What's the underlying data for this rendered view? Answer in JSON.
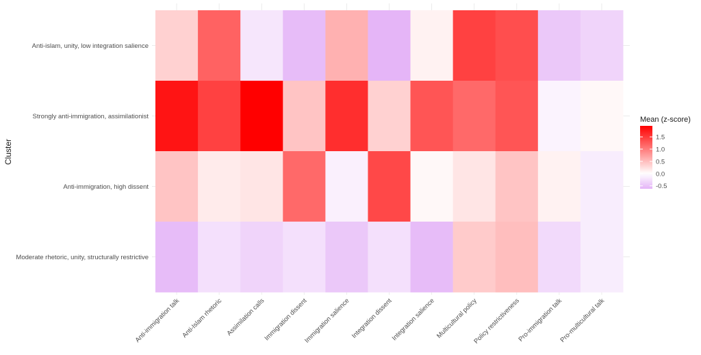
{
  "chart_data": {
    "type": "heatmap",
    "ylabel": "Cluster",
    "xlabel": "",
    "x_categories": [
      "Anti-immigration talk",
      "Anti-Islam rhetoric",
      "Assimilation calls",
      "Immigration dissent",
      "Immigration salience",
      "Integration dissent",
      "Integration salience",
      "Multicultural policy",
      "Policy restrictiveness",
      "Pro-immigration talk",
      "Pro-multicultural talk"
    ],
    "y_categories": [
      "Anti-islam, unity, low integration salience",
      "Strongly anti-immigration, assimilationist",
      "Anti-immigration, high dissent",
      "Moderate rhetoric, unity, structurally restrictive"
    ],
    "values": [
      [
        0.35,
        1.2,
        -0.2,
        -0.55,
        0.6,
        -0.6,
        0.1,
        1.45,
        1.35,
        -0.45,
        -0.35
      ],
      [
        1.8,
        1.45,
        1.95,
        0.45,
        1.6,
        0.35,
        1.3,
        1.15,
        1.3,
        -0.1,
        0.05
      ],
      [
        0.45,
        0.15,
        0.2,
        1.15,
        -0.12,
        1.4,
        0.05,
        0.2,
        0.45,
        0.1,
        -0.15
      ],
      [
        -0.55,
        -0.25,
        -0.35,
        -0.25,
        -0.45,
        -0.25,
        -0.55,
        0.4,
        0.5,
        -0.3,
        -0.15
      ]
    ],
    "legend": {
      "title": "Mean (z-score)",
      "breaks": [
        1.5,
        1.0,
        0.5,
        0.0,
        -0.5
      ],
      "labels": [
        "1.5",
        "1.0",
        "0.5",
        "0.0",
        "-0.5"
      ],
      "range": [
        -0.62,
        1.95
      ],
      "low_color": "#e4b3f7",
      "mid_color": "#ffffff",
      "high_color": "#ff0000",
      "position": "right"
    },
    "grid": true
  }
}
